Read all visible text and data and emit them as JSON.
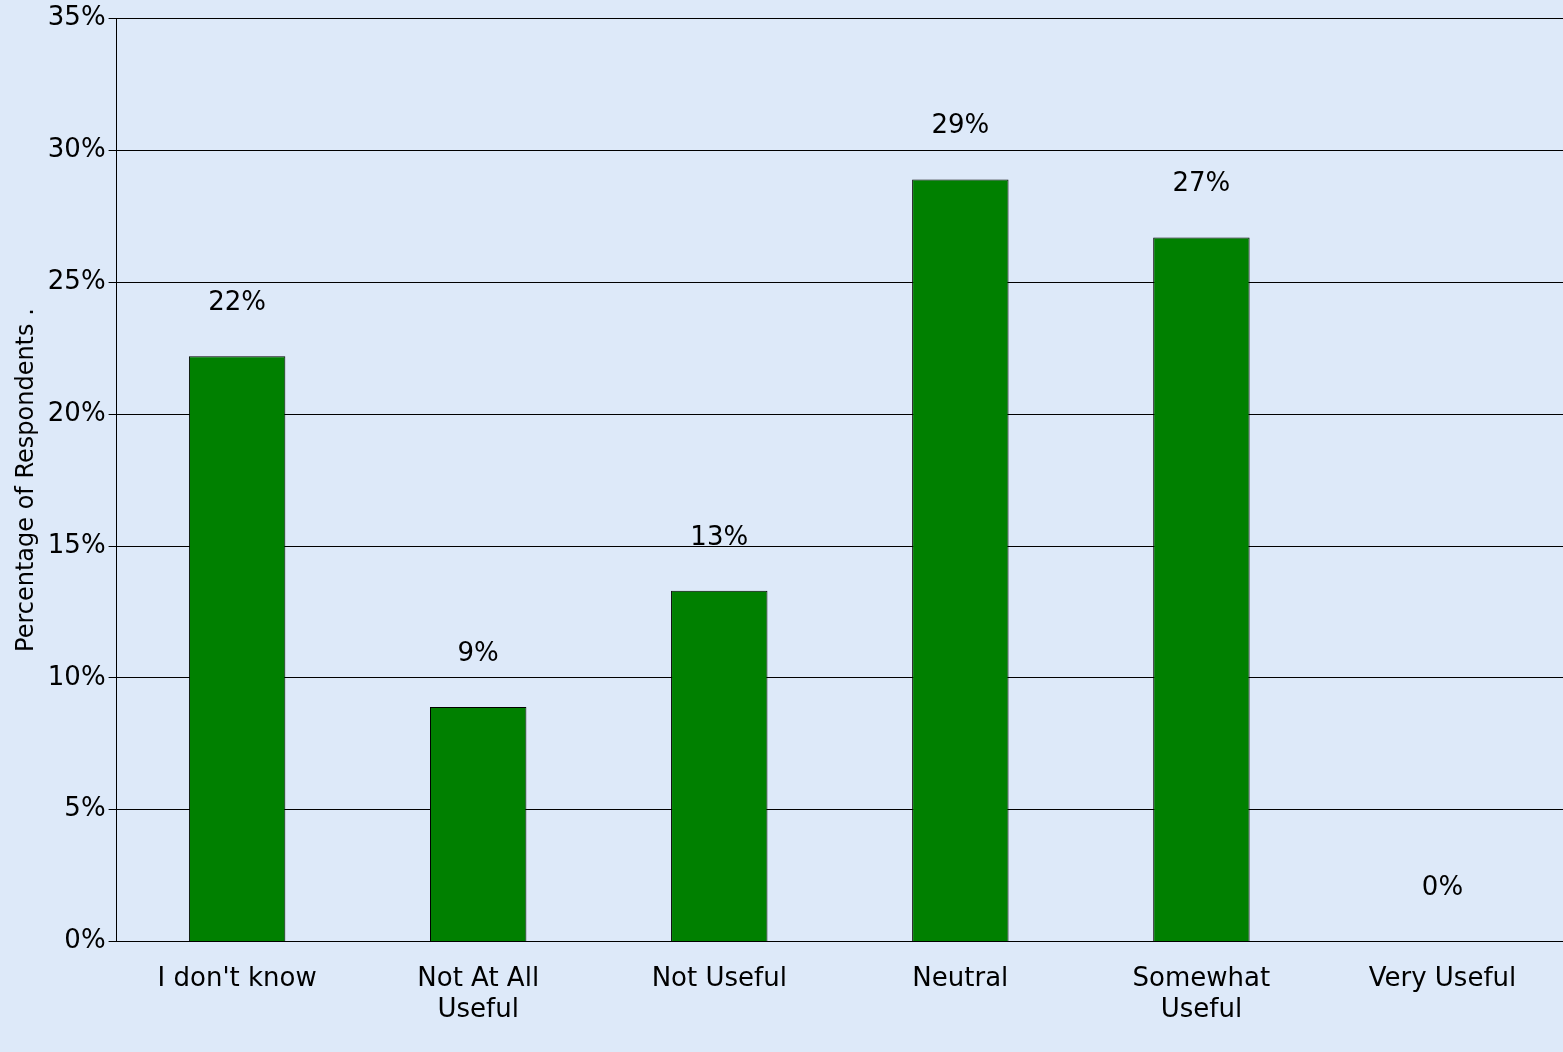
{
  "chart_data": {
    "type": "bar",
    "ylabel": "Percentage of Respondents .",
    "categories": [
      "I don't know",
      "Not At All Useful",
      "Not Useful",
      "Neutral",
      "Somewhat Useful",
      "Very Useful"
    ],
    "values": [
      22.2,
      8.9,
      13.3,
      28.9,
      26.7,
      0
    ],
    "value_labels": [
      "22%",
      "9%",
      "13%",
      "29%",
      "27%",
      "0%"
    ],
    "color": "#008000",
    "ylim": [
      0,
      35
    ],
    "yticks": [
      {
        "value": 0,
        "label": "0%"
      },
      {
        "value": 5,
        "label": "5%"
      },
      {
        "value": 10,
        "label": "10%"
      },
      {
        "value": 15,
        "label": "15%"
      },
      {
        "value": 20,
        "label": "20%"
      },
      {
        "value": 25,
        "label": "25%"
      },
      {
        "value": 30,
        "label": "30%"
      },
      {
        "value": 35,
        "label": "35%"
      }
    ],
    "grid": "y",
    "legend": false
  }
}
